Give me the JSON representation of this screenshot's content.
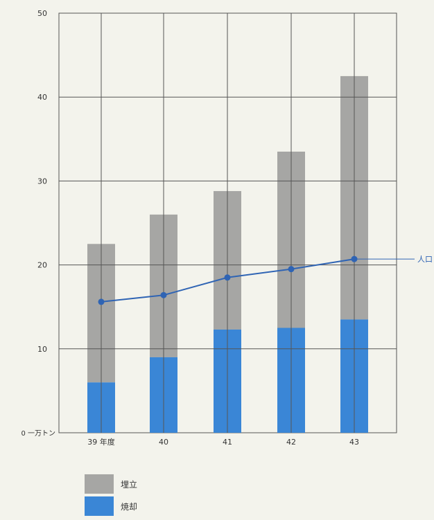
{
  "chart_data": {
    "type": "bar",
    "stacked": true,
    "categories": [
      "39 年度",
      "40",
      "41",
      "42",
      "43"
    ],
    "series": [
      {
        "name": "焼却",
        "values": [
          6,
          9,
          12.3,
          12.5,
          13.5
        ]
      },
      {
        "name": "埋立",
        "values": [
          16.5,
          17,
          16.5,
          21,
          29
        ]
      }
    ],
    "line": {
      "name": "人口",
      "values": [
        15.6,
        16.4,
        18.5,
        19.5,
        20.7
      ]
    },
    "y_ticks": [
      "0",
      "10",
      "20",
      "30",
      "40",
      "50"
    ],
    "y_zero_label": "0 一万トン",
    "ylim": [
      0,
      50
    ],
    "grid": true,
    "legend_position": "bottom-left",
    "colors": {
      "burn": "#3a86d6",
      "landfill": "#a6a6a4",
      "line": "#2f64b4",
      "grid": "#555555",
      "background": "#f3f3ec"
    }
  },
  "legend": {
    "items": [
      {
        "label": "埋立",
        "color": "#a6a6a4"
      },
      {
        "label": "焼却",
        "color": "#3a86d6"
      }
    ]
  }
}
